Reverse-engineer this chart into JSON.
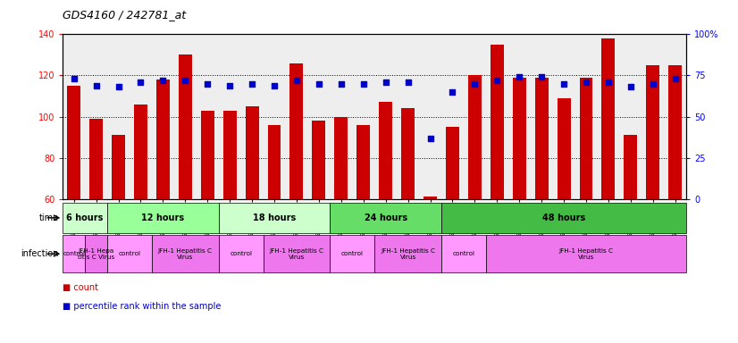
{
  "title": "GDS4160 / 242781_at",
  "samples": [
    "GSM523814",
    "GSM523815",
    "GSM523800",
    "GSM523801",
    "GSM523816",
    "GSM523817",
    "GSM523818",
    "GSM523802",
    "GSM523803",
    "GSM523804",
    "GSM523819",
    "GSM523820",
    "GSM523821",
    "GSM523805",
    "GSM523806",
    "GSM523807",
    "GSM523822",
    "GSM523823",
    "GSM523824",
    "GSM523808",
    "GSM523809",
    "GSM523810",
    "GSM523825",
    "GSM523826",
    "GSM523827",
    "GSM523811",
    "GSM523812",
    "GSM523813"
  ],
  "counts": [
    115,
    99,
    91,
    106,
    118,
    130,
    103,
    103,
    105,
    96,
    126,
    98,
    100,
    96,
    107,
    104,
    61,
    95,
    120,
    135,
    119,
    119,
    109,
    119,
    138,
    91,
    125,
    125
  ],
  "percentile_ranks": [
    73,
    69,
    68,
    71,
    72,
    72,
    70,
    69,
    70,
    69,
    72,
    70,
    70,
    70,
    71,
    71,
    37,
    65,
    70,
    72,
    74,
    74,
    70,
    71,
    71,
    68,
    70,
    73
  ],
  "bar_color": "#cc0000",
  "dot_color": "#0000cc",
  "ylim_left": [
    60,
    140
  ],
  "ylim_right": [
    0,
    100
  ],
  "yticks_left": [
    60,
    80,
    100,
    120,
    140
  ],
  "yticks_right": [
    0,
    25,
    50,
    75,
    100
  ],
  "ytick_labels_right": [
    "0",
    "25",
    "50",
    "75",
    "100%"
  ],
  "time_groups": [
    {
      "label": "6 hours",
      "start": 0,
      "end": 2,
      "color": "#ccffcc"
    },
    {
      "label": "12 hours",
      "start": 2,
      "end": 7,
      "color": "#99ff99"
    },
    {
      "label": "18 hours",
      "start": 7,
      "end": 12,
      "color": "#ccffcc"
    },
    {
      "label": "24 hours",
      "start": 12,
      "end": 17,
      "color": "#66dd66"
    },
    {
      "label": "48 hours",
      "start": 17,
      "end": 28,
      "color": "#44bb44"
    }
  ],
  "infection_groups": [
    {
      "label": "control",
      "start": 0,
      "end": 1,
      "color": "#ff99ff"
    },
    {
      "label": "JFH-1 Hepa\ntitis C Virus",
      "start": 1,
      "end": 2,
      "color": "#ee77ee"
    },
    {
      "label": "control",
      "start": 2,
      "end": 4,
      "color": "#ff99ff"
    },
    {
      "label": "JFH-1 Hepatitis C\nVirus",
      "start": 4,
      "end": 7,
      "color": "#ee77ee"
    },
    {
      "label": "control",
      "start": 7,
      "end": 9,
      "color": "#ff99ff"
    },
    {
      "label": "JFH-1 Hepatitis C\nVirus",
      "start": 9,
      "end": 12,
      "color": "#ee77ee"
    },
    {
      "label": "control",
      "start": 12,
      "end": 14,
      "color": "#ff99ff"
    },
    {
      "label": "JFH-1 Hepatitis C\nVirus",
      "start": 14,
      "end": 17,
      "color": "#ee77ee"
    },
    {
      "label": "control",
      "start": 17,
      "end": 19,
      "color": "#ff99ff"
    },
    {
      "label": "JFH-1 Hepatitis C\nVirus",
      "start": 19,
      "end": 28,
      "color": "#ee77ee"
    }
  ],
  "background_color": "#ffffff",
  "chart_bg": "#eeeeee",
  "legend_count_color": "#cc0000",
  "legend_dot_color": "#0000cc"
}
